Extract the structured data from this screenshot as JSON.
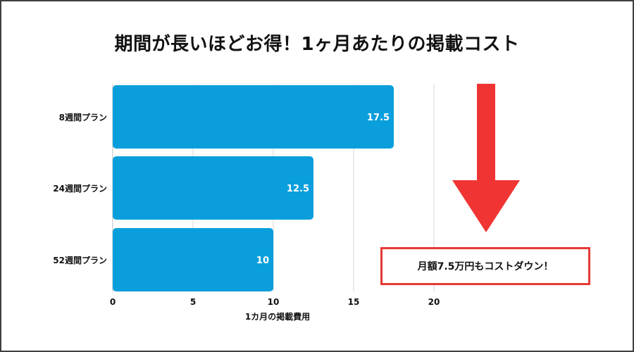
{
  "title": "期間が長いほどお得！1ヶ月あたりの掲載コスト",
  "callout": "月額7.5万円もコストダウン！",
  "colors": {
    "bar": "#0a9fdc",
    "arrow": "#f03434",
    "grid": "#d4d4d4",
    "text": "#111111"
  },
  "chart_data": {
    "type": "bar",
    "orientation": "horizontal",
    "categories": [
      "8週間プラン",
      "24週間プラン",
      "52週間プラン"
    ],
    "values": [
      17.5,
      12.5,
      10
    ],
    "value_labels": [
      "17.5",
      "12.5",
      "10"
    ],
    "xlabel": "1カ月の掲載費用",
    "xticks": [
      "0",
      "5",
      "10",
      "15",
      "20"
    ],
    "xtick_values": [
      0,
      5,
      10,
      15,
      20
    ],
    "xlim": [
      0,
      20
    ],
    "grid": true,
    "legend": "none"
  }
}
